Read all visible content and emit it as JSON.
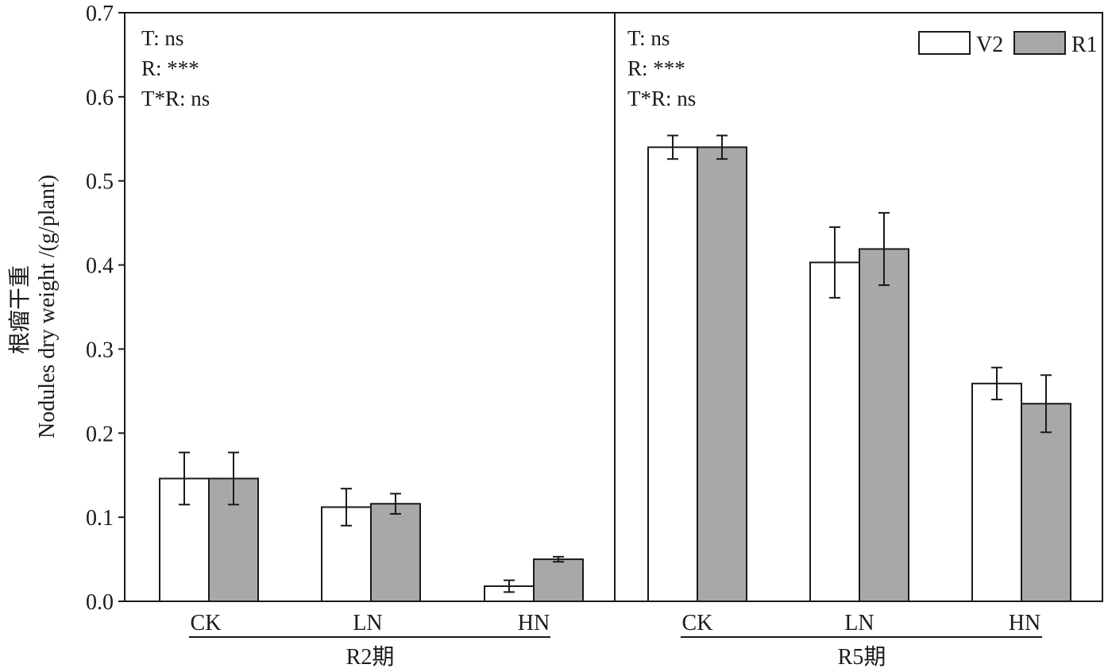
{
  "chart_data": {
    "type": "bar",
    "ylabel_line1": "根瘤干重",
    "ylabel_line2": "Nodules dry weight /(g/plant)",
    "ylim": [
      0,
      0.7
    ],
    "yticks": [
      "0.0",
      "0.1",
      "0.2",
      "0.3",
      "0.4",
      "0.5",
      "0.6",
      "0.7"
    ],
    "legend": {
      "placement": "top-right",
      "entries": [
        "V2",
        "R1"
      ]
    },
    "colors": {
      "V2": "#ffffff",
      "R1": "#a8a8a8",
      "stroke": "#1a1a1a"
    },
    "panels": [
      {
        "group_label": "R2期",
        "stats": [
          "T: ns",
          "R: ***",
          "T*R: ns"
        ],
        "categories": [
          "CK",
          "LN",
          "HN"
        ],
        "series": [
          {
            "name": "V2",
            "values": [
              0.146,
              0.112,
              0.018
            ],
            "errors": [
              0.031,
              0.022,
              0.007
            ]
          },
          {
            "name": "R1",
            "values": [
              0.146,
              0.116,
              0.05
            ],
            "errors": [
              0.031,
              0.012,
              0.003
            ]
          }
        ]
      },
      {
        "group_label": "R5期",
        "stats": [
          "T: ns",
          "R: ***",
          "T*R: ns"
        ],
        "categories": [
          "CK",
          "LN",
          "HN"
        ],
        "series": [
          {
            "name": "V2",
            "values": [
              0.54,
              0.403,
              0.259
            ],
            "errors": [
              0.014,
              0.042,
              0.019
            ]
          },
          {
            "name": "R1",
            "values": [
              0.54,
              0.419,
              0.235
            ],
            "errors": [
              0.014,
              0.043,
              0.034
            ]
          }
        ]
      }
    ]
  }
}
